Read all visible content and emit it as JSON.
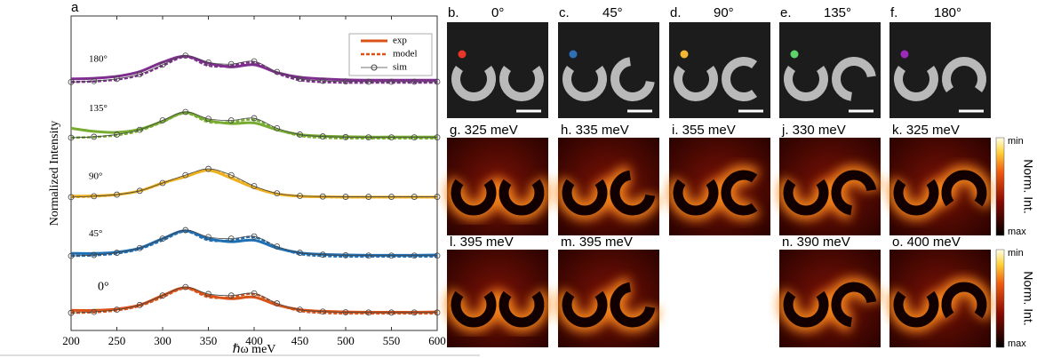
{
  "chart_data": {
    "type": "line",
    "panel_label": "a",
    "xlabel": "ℏω meV",
    "ylabel": "Normalized Intensity",
    "x": [
      200,
      225,
      250,
      275,
      300,
      325,
      350,
      375,
      400,
      425,
      450,
      475,
      500,
      525,
      550,
      575,
      600
    ],
    "xlim": [
      200,
      600
    ],
    "xticks": [
      200,
      250,
      300,
      350,
      400,
      450,
      500,
      550,
      600
    ],
    "ylim": [
      0,
      10
    ],
    "sim_color": "#444444",
    "legend": [
      {
        "name": "exp",
        "style": "solid",
        "color": "#d95319"
      },
      {
        "name": "model",
        "style": "dashed",
        "color": "#d95319"
      },
      {
        "name": "sim",
        "style": "markers",
        "color": "#444444"
      }
    ],
    "groups": [
      {
        "label": "0°",
        "color": "#d95319",
        "exp": [
          0.64,
          0.64,
          0.68,
          0.81,
          1.11,
          1.36,
          1.11,
          1.01,
          1.06,
          0.81,
          0.66,
          0.61,
          0.59,
          0.58,
          0.58,
          0.58,
          0.59
        ],
        "model": [
          0.56,
          0.58,
          0.64,
          0.78,
          1.06,
          1.34,
          1.06,
          1.06,
          1.16,
          0.84,
          0.62,
          0.56,
          0.54,
          0.54,
          0.54,
          0.54,
          0.54
        ],
        "sim": [
          0.56,
          0.59,
          0.66,
          0.81,
          1.11,
          1.38,
          1.16,
          1.11,
          1.18,
          0.86,
          0.66,
          0.6,
          0.58,
          0.57,
          0.57,
          0.57,
          0.57
        ]
      },
      {
        "label": "45°",
        "color": "#1f6fb4",
        "exp": [
          2.45,
          2.45,
          2.49,
          2.62,
          2.92,
          3.17,
          2.92,
          2.82,
          2.87,
          2.62,
          2.47,
          2.42,
          2.4,
          2.39,
          2.39,
          2.39,
          2.4
        ],
        "model": [
          2.37,
          2.39,
          2.45,
          2.59,
          2.87,
          3.15,
          2.87,
          2.87,
          2.97,
          2.65,
          2.43,
          2.37,
          2.35,
          2.35,
          2.35,
          2.35,
          2.35
        ],
        "sim": [
          2.37,
          2.4,
          2.47,
          2.62,
          2.92,
          3.19,
          2.97,
          2.92,
          2.99,
          2.67,
          2.47,
          2.41,
          2.39,
          2.38,
          2.38,
          2.38,
          2.38
        ]
      },
      {
        "label": "90°",
        "color": "#edb120",
        "exp": [
          4.27,
          4.28,
          4.32,
          4.44,
          4.69,
          4.89,
          5.09,
          4.84,
          4.54,
          4.34,
          4.27,
          4.25,
          4.24,
          4.24,
          4.24,
          4.24,
          4.24
        ],
        "model": [
          4.24,
          4.26,
          4.31,
          4.43,
          4.67,
          4.9,
          5.1,
          4.88,
          4.56,
          4.35,
          4.26,
          4.24,
          4.23,
          4.23,
          4.23,
          4.23,
          4.23
        ],
        "sim": [
          4.24,
          4.27,
          4.32,
          4.44,
          4.69,
          4.94,
          5.14,
          4.94,
          4.59,
          4.36,
          4.28,
          4.26,
          4.25,
          4.25,
          4.25,
          4.25,
          4.25
        ]
      },
      {
        "label": "135°",
        "color": "#77ac30",
        "exp": [
          6.43,
          6.33,
          6.3,
          6.4,
          6.65,
          6.93,
          6.68,
          6.58,
          6.6,
          6.38,
          6.23,
          6.18,
          6.16,
          6.15,
          6.15,
          6.15,
          6.15
        ],
        "model": [
          6.13,
          6.15,
          6.21,
          6.35,
          6.63,
          6.91,
          6.63,
          6.63,
          6.7,
          6.4,
          6.19,
          6.13,
          6.11,
          6.11,
          6.11,
          6.11,
          6.11
        ],
        "sim": [
          6.13,
          6.16,
          6.23,
          6.38,
          6.68,
          6.95,
          6.73,
          6.68,
          6.75,
          6.43,
          6.23,
          6.17,
          6.15,
          6.14,
          6.14,
          6.14,
          6.14
        ]
      },
      {
        "label": "180°",
        "color": "#7e2f8e",
        "exp": [
          8.0,
          8.02,
          8.08,
          8.23,
          8.53,
          8.72,
          8.5,
          8.38,
          8.45,
          8.2,
          8.05,
          8.0,
          7.97,
          7.96,
          7.96,
          7.96,
          7.96
        ],
        "model": [
          7.9,
          7.92,
          7.98,
          8.12,
          8.42,
          8.7,
          8.42,
          8.42,
          8.52,
          8.18,
          7.96,
          7.9,
          7.88,
          7.88,
          7.88,
          7.88,
          7.88
        ],
        "sim": [
          7.9,
          7.93,
          8.0,
          8.15,
          8.45,
          8.74,
          8.52,
          8.47,
          8.56,
          8.22,
          8.0,
          7.94,
          7.92,
          7.91,
          7.91,
          7.91,
          7.91
        ]
      }
    ]
  },
  "images": {
    "sem_panels": [
      {
        "label": "b.",
        "angle": "0°",
        "dot_color": "#e8352a"
      },
      {
        "label": "c.",
        "angle": "45°",
        "dot_color": "#2f6fb5"
      },
      {
        "label": "d.",
        "angle": "90°",
        "dot_color": "#f2b733"
      },
      {
        "label": "e.",
        "angle": "135°",
        "dot_color": "#5fd36a"
      },
      {
        "label": "f.",
        "angle": "180°",
        "dot_color": "#9a2ab8"
      }
    ],
    "map_rows": [
      [
        "g. 325 meV",
        "h. 335 meV",
        "i. 355 meV",
        "j. 330 meV",
        "k. 325 meV"
      ],
      [
        "l. 395 meV",
        "m. 395 meV",
        "n. 390 meV",
        "o. 400 meV"
      ]
    ],
    "colorbars": [
      {
        "top": "min",
        "bottom": "max",
        "title": "Norm. Int."
      },
      {
        "top": "min",
        "bottom": "max",
        "title": "Norm. Int."
      }
    ]
  }
}
